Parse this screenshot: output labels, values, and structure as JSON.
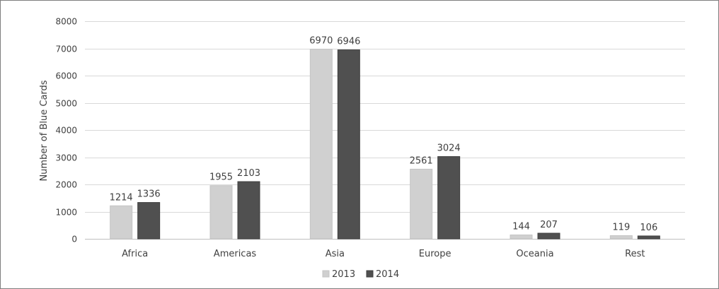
{
  "chart_data": {
    "type": "bar",
    "title": "",
    "xlabel": "",
    "ylabel": "Number of Blue Cards",
    "ylim": [
      0,
      8000
    ],
    "yticks": [
      0,
      1000,
      2000,
      3000,
      4000,
      5000,
      6000,
      7000,
      8000
    ],
    "grid": true,
    "legend_position": "bottom",
    "categories": [
      "Africa",
      "Americas",
      "Asia",
      "Europe",
      "Oceania",
      "Rest"
    ],
    "series": [
      {
        "name": "2013",
        "color": "#d0d0d0",
        "values": [
          1214,
          1955,
          6970,
          2561,
          144,
          119
        ]
      },
      {
        "name": "2014",
        "color": "#505050",
        "values": [
          1336,
          2103,
          6946,
          3024,
          207,
          106
        ]
      }
    ]
  }
}
